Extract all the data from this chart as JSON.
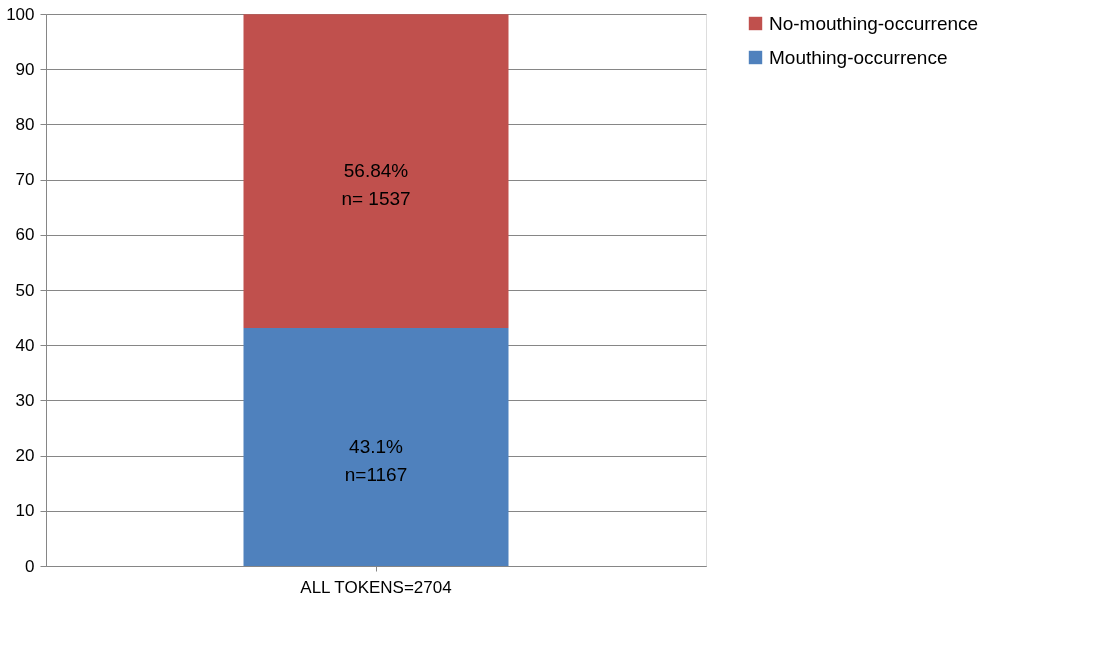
{
  "chart_data": {
    "type": "bar",
    "stacked": true,
    "categories": [
      "ALL TOKENS=2704"
    ],
    "series": [
      {
        "name": "Mouthing-occurrence",
        "color": "#4f81bd",
        "values": [
          43.1
        ],
        "value_labels": [
          "43.1%\nn=1167"
        ]
      },
      {
        "name": "No-mouthing-occurrence",
        "color": "#c0504d",
        "values": [
          56.84
        ],
        "value_labels": [
          "56.84%\nn= 1537"
        ]
      }
    ],
    "ylim": [
      0,
      100
    ],
    "yticks": [
      0,
      10,
      20,
      30,
      40,
      50,
      60,
      70,
      80,
      90,
      100
    ],
    "grid": "y",
    "legend": "right"
  }
}
